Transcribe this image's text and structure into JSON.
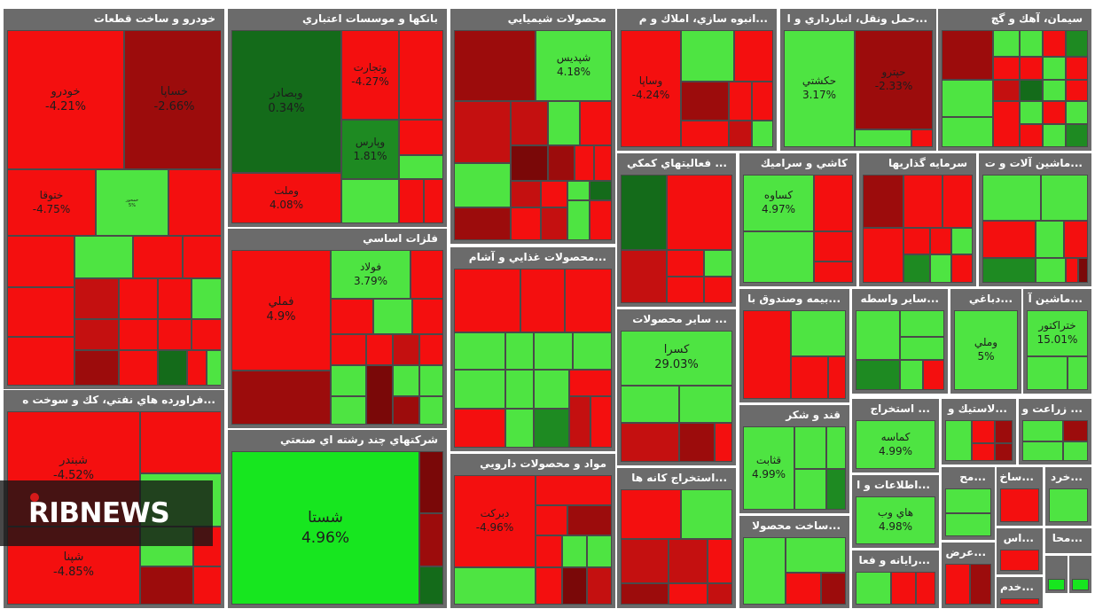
{
  "watermark": "RIBNEWS",
  "colors": {
    "positive": "#17e61f",
    "negative": "#f40f0f",
    "negative_dark": "#9c0c0c",
    "positive_dark": "#1e8a22",
    "header": "#6b6b6b"
  },
  "sectors": [
    {
      "name": "خودرو و ساخت قطعات",
      "tiles": [
        {
          "symbol": "خودرو",
          "change": "-4.21%"
        },
        {
          "symbol": "خساپا",
          "change": "-2.66%"
        },
        {
          "symbol": "ختوقا",
          "change": "-4.75%"
        },
        {
          "symbol": "خمحور",
          "change": "5%"
        }
      ]
    },
    {
      "name": "بانکها و موسسات اعتباري",
      "tiles": [
        {
          "symbol": "وبصادر",
          "change": "0.34%"
        },
        {
          "symbol": "وتجارت",
          "change": "-4.27%"
        },
        {
          "symbol": "وپارس",
          "change": "1.81%"
        },
        {
          "symbol": "وملت",
          "change": "4.08%"
        }
      ]
    },
    {
      "name": "محصولات شيميايي",
      "tiles": [
        {
          "symbol": "شپديس",
          "change": "4.18%"
        }
      ]
    },
    {
      "name": "...انبوه سازي، املاك و م",
      "tiles": [
        {
          "symbol": "وساپا",
          "change": "-4.24%"
        }
      ]
    },
    {
      "name": "...حمل ونقل، انبارداري و ا",
      "tiles": [
        {
          "symbol": "حكشتي",
          "change": "3.17%"
        },
        {
          "symbol": "حپترو",
          "change": "-2.33%"
        }
      ]
    },
    {
      "name": "سيمان، آهك و گچ",
      "tiles": []
    },
    {
      "name": "فلزات اساسي",
      "tiles": [
        {
          "symbol": "فملي",
          "change": "4.9%"
        },
        {
          "symbol": "فولاد",
          "change": "3.79%"
        }
      ]
    },
    {
      "name": "...محصولات غذايي و آشام",
      "tiles": []
    },
    {
      "name": "... فعاليتهاي كمكي",
      "tiles": []
    },
    {
      "name": "كاشي و سراميك",
      "tiles": [
        {
          "symbol": "كساوه",
          "change": "4.97%"
        }
      ]
    },
    {
      "name": "سرمايه گذاريها",
      "tiles": []
    },
    {
      "name": "...ماشين آلات و ت",
      "tiles": []
    },
    {
      "name": "... ساير محصولات",
      "tiles": [
        {
          "symbol": "كسرا",
          "change": "29.03%"
        }
      ]
    },
    {
      "name": "...بيمه وصندوق با",
      "tiles": []
    },
    {
      "name": "...ساير واسطه",
      "tiles": []
    },
    {
      "name": "...دباغي",
      "tiles": [
        {
          "symbol": "وملي",
          "change": "5%"
        }
      ]
    },
    {
      "name": "...ماشين آ",
      "tiles": [
        {
          "symbol": "ختراكتور",
          "change": "15.01%"
        }
      ]
    },
    {
      "name": "...فراورده هاي نفتي، كك و سوخت ه",
      "tiles": [
        {
          "symbol": "شبندر",
          "change": "-4.52%"
        },
        {
          "symbol": "شپنا",
          "change": "-4.85%"
        }
      ]
    },
    {
      "name": "شركتهاي چند رشته اي صنعتي",
      "tiles": [
        {
          "symbol": "شستا",
          "change": "4.96%"
        }
      ]
    },
    {
      "name": "مواد و محصولات دارويي",
      "tiles": [
        {
          "symbol": "دبركت",
          "change": "-4.96%"
        }
      ]
    },
    {
      "name": "...استخراج كانه ها",
      "tiles": []
    },
    {
      "name": "قند و شكر",
      "tiles": [
        {
          "symbol": "قثابت",
          "change": "4.99%"
        }
      ]
    },
    {
      "name": "... استخراج",
      "tiles": [
        {
          "symbol": "كماسه",
          "change": "4.99%"
        }
      ]
    },
    {
      "name": "...لاستيك و",
      "tiles": []
    },
    {
      "name": "... زراعت و",
      "tiles": []
    },
    {
      "name": "...ساخت محصولا",
      "tiles": []
    },
    {
      "name": "...اطلاعات و ا",
      "tiles": [
        {
          "symbol": "هاي وب",
          "change": "4.98%"
        }
      ]
    },
    {
      "name": "...رايانه و فعا",
      "tiles": []
    },
    {
      "name": "...مح",
      "tiles": []
    },
    {
      "name": "...ساخ",
      "tiles": []
    },
    {
      "name": "...خرد",
      "tiles": []
    },
    {
      "name": "...اس",
      "tiles": []
    },
    {
      "name": "...محا",
      "tiles": []
    },
    {
      "name": "...عرض",
      "tiles": []
    },
    {
      "name": "...خدم",
      "tiles": []
    }
  ]
}
